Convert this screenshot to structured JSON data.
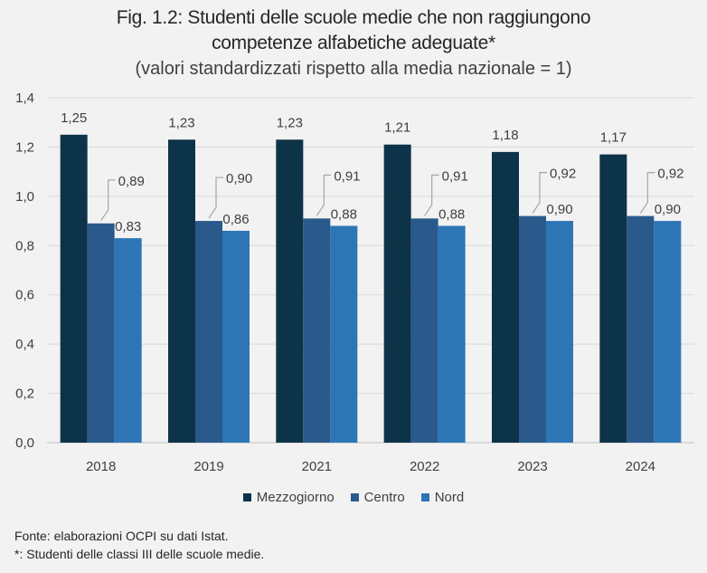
{
  "title_line1": "Fig. 1.2: Studenti delle scuole medie che non raggiungono",
  "title_line2": "competenze alfabetiche adeguate*",
  "subtitle": "(valori standardizzati rispetto alla media nazionale = 1)",
  "notes": {
    "source": "Fonte: elaborazioni OCPI su dati Istat.",
    "footnote": "*: Studenti delle classi III delle scuole medie."
  },
  "chart_data": {
    "type": "bar",
    "categories": [
      "2018",
      "2019",
      "2021",
      "2022",
      "2023",
      "2024"
    ],
    "ylim": [
      0,
      1.4
    ],
    "yticks": [
      "0,0",
      "0,2",
      "0,4",
      "0,6",
      "0,8",
      "1,0",
      "1,2",
      "1,4"
    ],
    "ytick_values": [
      0,
      0.2,
      0.4,
      0.6,
      0.8,
      1.0,
      1.2,
      1.4
    ],
    "grid": true,
    "legend_position": "bottom",
    "series": [
      {
        "name": "Mezzogiorno",
        "color": "#0d3349",
        "values": [
          1.25,
          1.23,
          1.23,
          1.21,
          1.18,
          1.17
        ],
        "labels": [
          "1,25",
          "1,23",
          "1,23",
          "1,21",
          "1,18",
          "1,17"
        ]
      },
      {
        "name": "Centro",
        "color": "#2a5a8c",
        "values": [
          0.89,
          0.9,
          0.91,
          0.91,
          0.92,
          0.92
        ],
        "labels": [
          "0,89",
          "0,90",
          "0,91",
          "0,91",
          "0,92",
          "0,92"
        ]
      },
      {
        "name": "Nord",
        "color": "#2e75b6",
        "values": [
          0.83,
          0.86,
          0.88,
          0.88,
          0.9,
          0.9
        ],
        "labels": [
          "0,83",
          "0,86",
          "0,88",
          "0,88",
          "0,90",
          "0,90"
        ]
      }
    ]
  }
}
